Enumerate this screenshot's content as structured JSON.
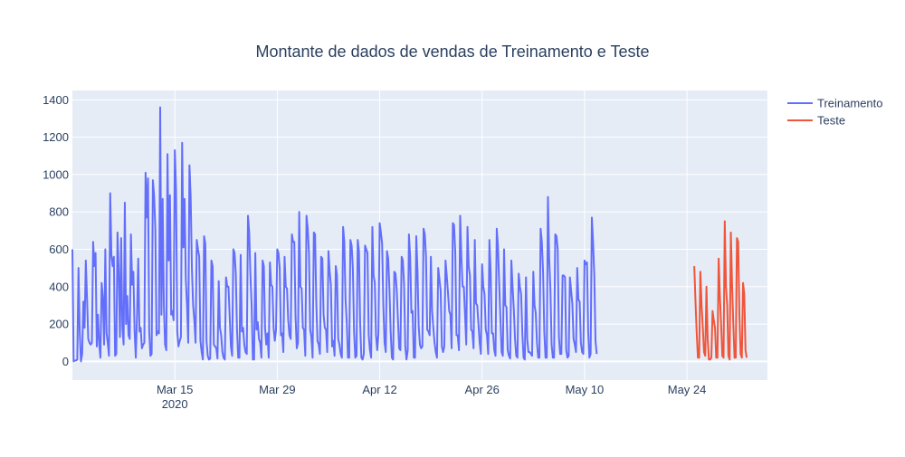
{
  "chart_data": {
    "type": "line",
    "title": "Montante de dados de vendas de Treinamento e Teste",
    "xlabel": "",
    "ylabel": "",
    "x_range": [
      "2020-03-01",
      "2020-06-04"
    ],
    "ylim": [
      -100,
      1450
    ],
    "y_ticks": [
      0,
      200,
      400,
      600,
      800,
      1000,
      1200,
      1400
    ],
    "x_ticks": [
      {
        "date": "2020-03-15",
        "label": "Mar 15",
        "sublabel": "2020"
      },
      {
        "date": "2020-03-29",
        "label": "Mar 29",
        "sublabel": ""
      },
      {
        "date": "2020-04-12",
        "label": "Apr 12",
        "sublabel": ""
      },
      {
        "date": "2020-04-26",
        "label": "Apr 26",
        "sublabel": ""
      },
      {
        "date": "2020-05-10",
        "label": "May 10",
        "sublabel": ""
      },
      {
        "date": "2020-05-24",
        "label": "May 24",
        "sublabel": ""
      }
    ],
    "grid": true,
    "legend_position": "top-right",
    "series": [
      {
        "name": "Treinamento",
        "color": "#636efa",
        "start": "2020-03-01",
        "step_hours": 4,
        "daily_peaks": [
          600,
          540,
          640,
          600,
          900,
          690,
          850,
          680,
          550,
          1010,
          970,
          1360,
          1110,
          1130,
          1170,
          1050,
          650,
          670,
          540,
          430,
          450,
          600,
          570,
          780,
          580,
          540,
          530,
          600,
          560,
          680,
          800,
          780,
          690,
          560,
          590,
          510,
          720,
          650,
          650,
          620,
          720,
          740,
          590,
          480,
          560,
          680,
          670,
          710,
          560,
          500,
          540,
          740,
          780,
          720,
          650,
          520,
          650,
          710,
          600,
          540,
          470,
          450,
          480,
          710,
          880,
          680,
          460,
          450,
          500,
          540,
          770
        ],
        "values": [
          600,
          0,
          5,
          5,
          10,
          500,
          160,
          0,
          40,
          320,
          180,
          540,
          340,
          120,
          100,
          90,
          100,
          640,
          510,
          580,
          80,
          250,
          90,
          20,
          420,
          340,
          90,
          600,
          150,
          100,
          30,
          900,
          570,
          510,
          560,
          30,
          40,
          690,
          480,
          130,
          660,
          180,
          90,
          850,
          200,
          350,
          140,
          120,
          680,
          410,
          480,
          160,
          20,
          250,
          550,
          160,
          180,
          70,
          90,
          100,
          1010,
          770,
          980,
          160,
          30,
          40,
          970,
          890,
          710,
          140,
          160,
          150,
          1360,
          250,
          870,
          300,
          90,
          60,
          1110,
          540,
          890,
          250,
          270,
          220,
          1130,
          920,
          160,
          80,
          110,
          130,
          1170,
          610,
          870,
          440,
          300,
          100,
          1050,
          880,
          500,
          300,
          220,
          100,
          650,
          600,
          560,
          110,
          50,
          10,
          670,
          630,
          110,
          30,
          10,
          15,
          540,
          510,
          90,
          80,
          70,
          15,
          430,
          180,
          140,
          50,
          20,
          10,
          450,
          400,
          400,
          240,
          80,
          30,
          600,
          580,
          470,
          170,
          20,
          20,
          570,
          160,
          180,
          90,
          50,
          40,
          780,
          690,
          460,
          300,
          10,
          10,
          580,
          170,
          210,
          120,
          100,
          20,
          540,
          510,
          180,
          90,
          150,
          20,
          530,
          410,
          400,
          180,
          110,
          170,
          600,
          580,
          500,
          140,
          150,
          50,
          560,
          400,
          390,
          220,
          140,
          120,
          680,
          640,
          640,
          240,
          70,
          100,
          800,
          400,
          390,
          180,
          170,
          30,
          780,
          710,
          580,
          170,
          130,
          20,
          690,
          680,
          320,
          110,
          90,
          40,
          560,
          550,
          250,
          180,
          170,
          50,
          590,
          480,
          410,
          80,
          110,
          30,
          510,
          460,
          120,
          90,
          40,
          20,
          720,
          640,
          330,
          210,
          20,
          20,
          650,
          620,
          500,
          160,
          20,
          30,
          650,
          590,
          200,
          20,
          10,
          40,
          620,
          600,
          580,
          140,
          60,
          20,
          720,
          460,
          420,
          140,
          60,
          150,
          740,
          690,
          630,
          300,
          100,
          50,
          590,
          550,
          390,
          160,
          20,
          10,
          480,
          470,
          380,
          220,
          70,
          60,
          560,
          540,
          410,
          80,
          10,
          60,
          680,
          560,
          260,
          270,
          20,
          20,
          670,
          490,
          190,
          90,
          70,
          80,
          710,
          680,
          560,
          170,
          160,
          140,
          560,
          270,
          180,
          100,
          50,
          20,
          500,
          440,
          380,
          80,
          50,
          80,
          540,
          460,
          370,
          270,
          250,
          70,
          740,
          730,
          580,
          140,
          140,
          60,
          780,
          560,
          400,
          400,
          250,
          90,
          720,
          510,
          460,
          170,
          160,
          70,
          650,
          310,
          300,
          200,
          100,
          40,
          520,
          400,
          360,
          170,
          140,
          40,
          650,
          480,
          150,
          150,
          60,
          30,
          710,
          620,
          420,
          230,
          50,
          30,
          600,
          300,
          290,
          60,
          30,
          15,
          540,
          400,
          280,
          120,
          30,
          20,
          470,
          400,
          360,
          150,
          20,
          10,
          450,
          120,
          50,
          50,
          40,
          30,
          480,
          300,
          260,
          100,
          20,
          20,
          710,
          640,
          480,
          160,
          20,
          20,
          880,
          550,
          390,
          90,
          20,
          20,
          680,
          670,
          600,
          130,
          40,
          40,
          460,
          460,
          450,
          60,
          20,
          30,
          450,
          380,
          310,
          120,
          90,
          50,
          500,
          330,
          320,
          100,
          50,
          40,
          540,
          520,
          530,
          160,
          20,
          40,
          770,
          640,
          460,
          110,
          40
        ]
      },
      {
        "name": "Teste",
        "color": "#ef553b",
        "start": "2020-05-25",
        "step_hours": 4,
        "daily_peaks": [
          510,
          480,
          400,
          270,
          550,
          750,
          690,
          660,
          420
        ],
        "values": [
          510,
          320,
          150,
          20,
          20,
          480,
          300,
          180,
          50,
          30,
          400,
          120,
          10,
          10,
          20,
          270,
          220,
          180,
          20,
          20,
          550,
          350,
          200,
          30,
          20,
          750,
          400,
          300,
          30,
          10,
          690,
          410,
          200,
          20,
          20,
          660,
          640,
          250,
          40,
          20,
          420,
          360,
          60,
          20
        ]
      }
    ]
  }
}
